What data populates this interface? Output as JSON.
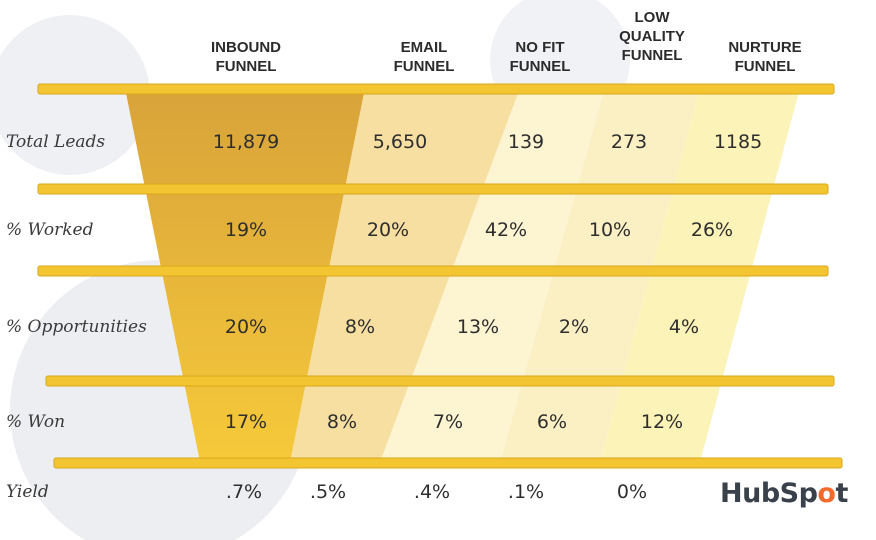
{
  "chart_data": {
    "type": "table",
    "columns": [
      "INBOUND\nFUNNEL",
      "EMAIL\nFUNNEL",
      "NO FIT\nFUNNEL",
      "LOW\nQUALITY\nFUNNEL",
      "NURTURE\nFUNNEL"
    ],
    "rows": [
      {
        "label": "Total Leads",
        "values": [
          "11,879",
          "5,650",
          "139",
          "273",
          "1185"
        ]
      },
      {
        "label": "% Worked",
        "values": [
          "19%",
          "20%",
          "42%",
          "10%",
          "26%"
        ]
      },
      {
        "label": "% Opportunities",
        "values": [
          "20%",
          "8%",
          "13%",
          "2%",
          "4%"
        ]
      },
      {
        "label": "% Won",
        "values": [
          "17%",
          "8%",
          "7%",
          "6%",
          "12%"
        ]
      },
      {
        "label": "Yield",
        "values": [
          ".7%",
          ".5%",
          ".4%",
          ".1%",
          "0%"
        ]
      }
    ],
    "colors": {
      "divider": "#f2c531",
      "divider_edge": "#d9a81c",
      "column_fills": [
        "#e8b63a",
        "#f6dfa0",
        "#fdf4d2",
        "#fbf0c4",
        "#fcf3b8"
      ],
      "inbound_gradient_top": "#d8a33a",
      "inbound_gradient_bottom": "#f6c93a"
    }
  },
  "logo": {
    "prefix": "HubSp",
    "accent": "o",
    "suffix": "t"
  }
}
